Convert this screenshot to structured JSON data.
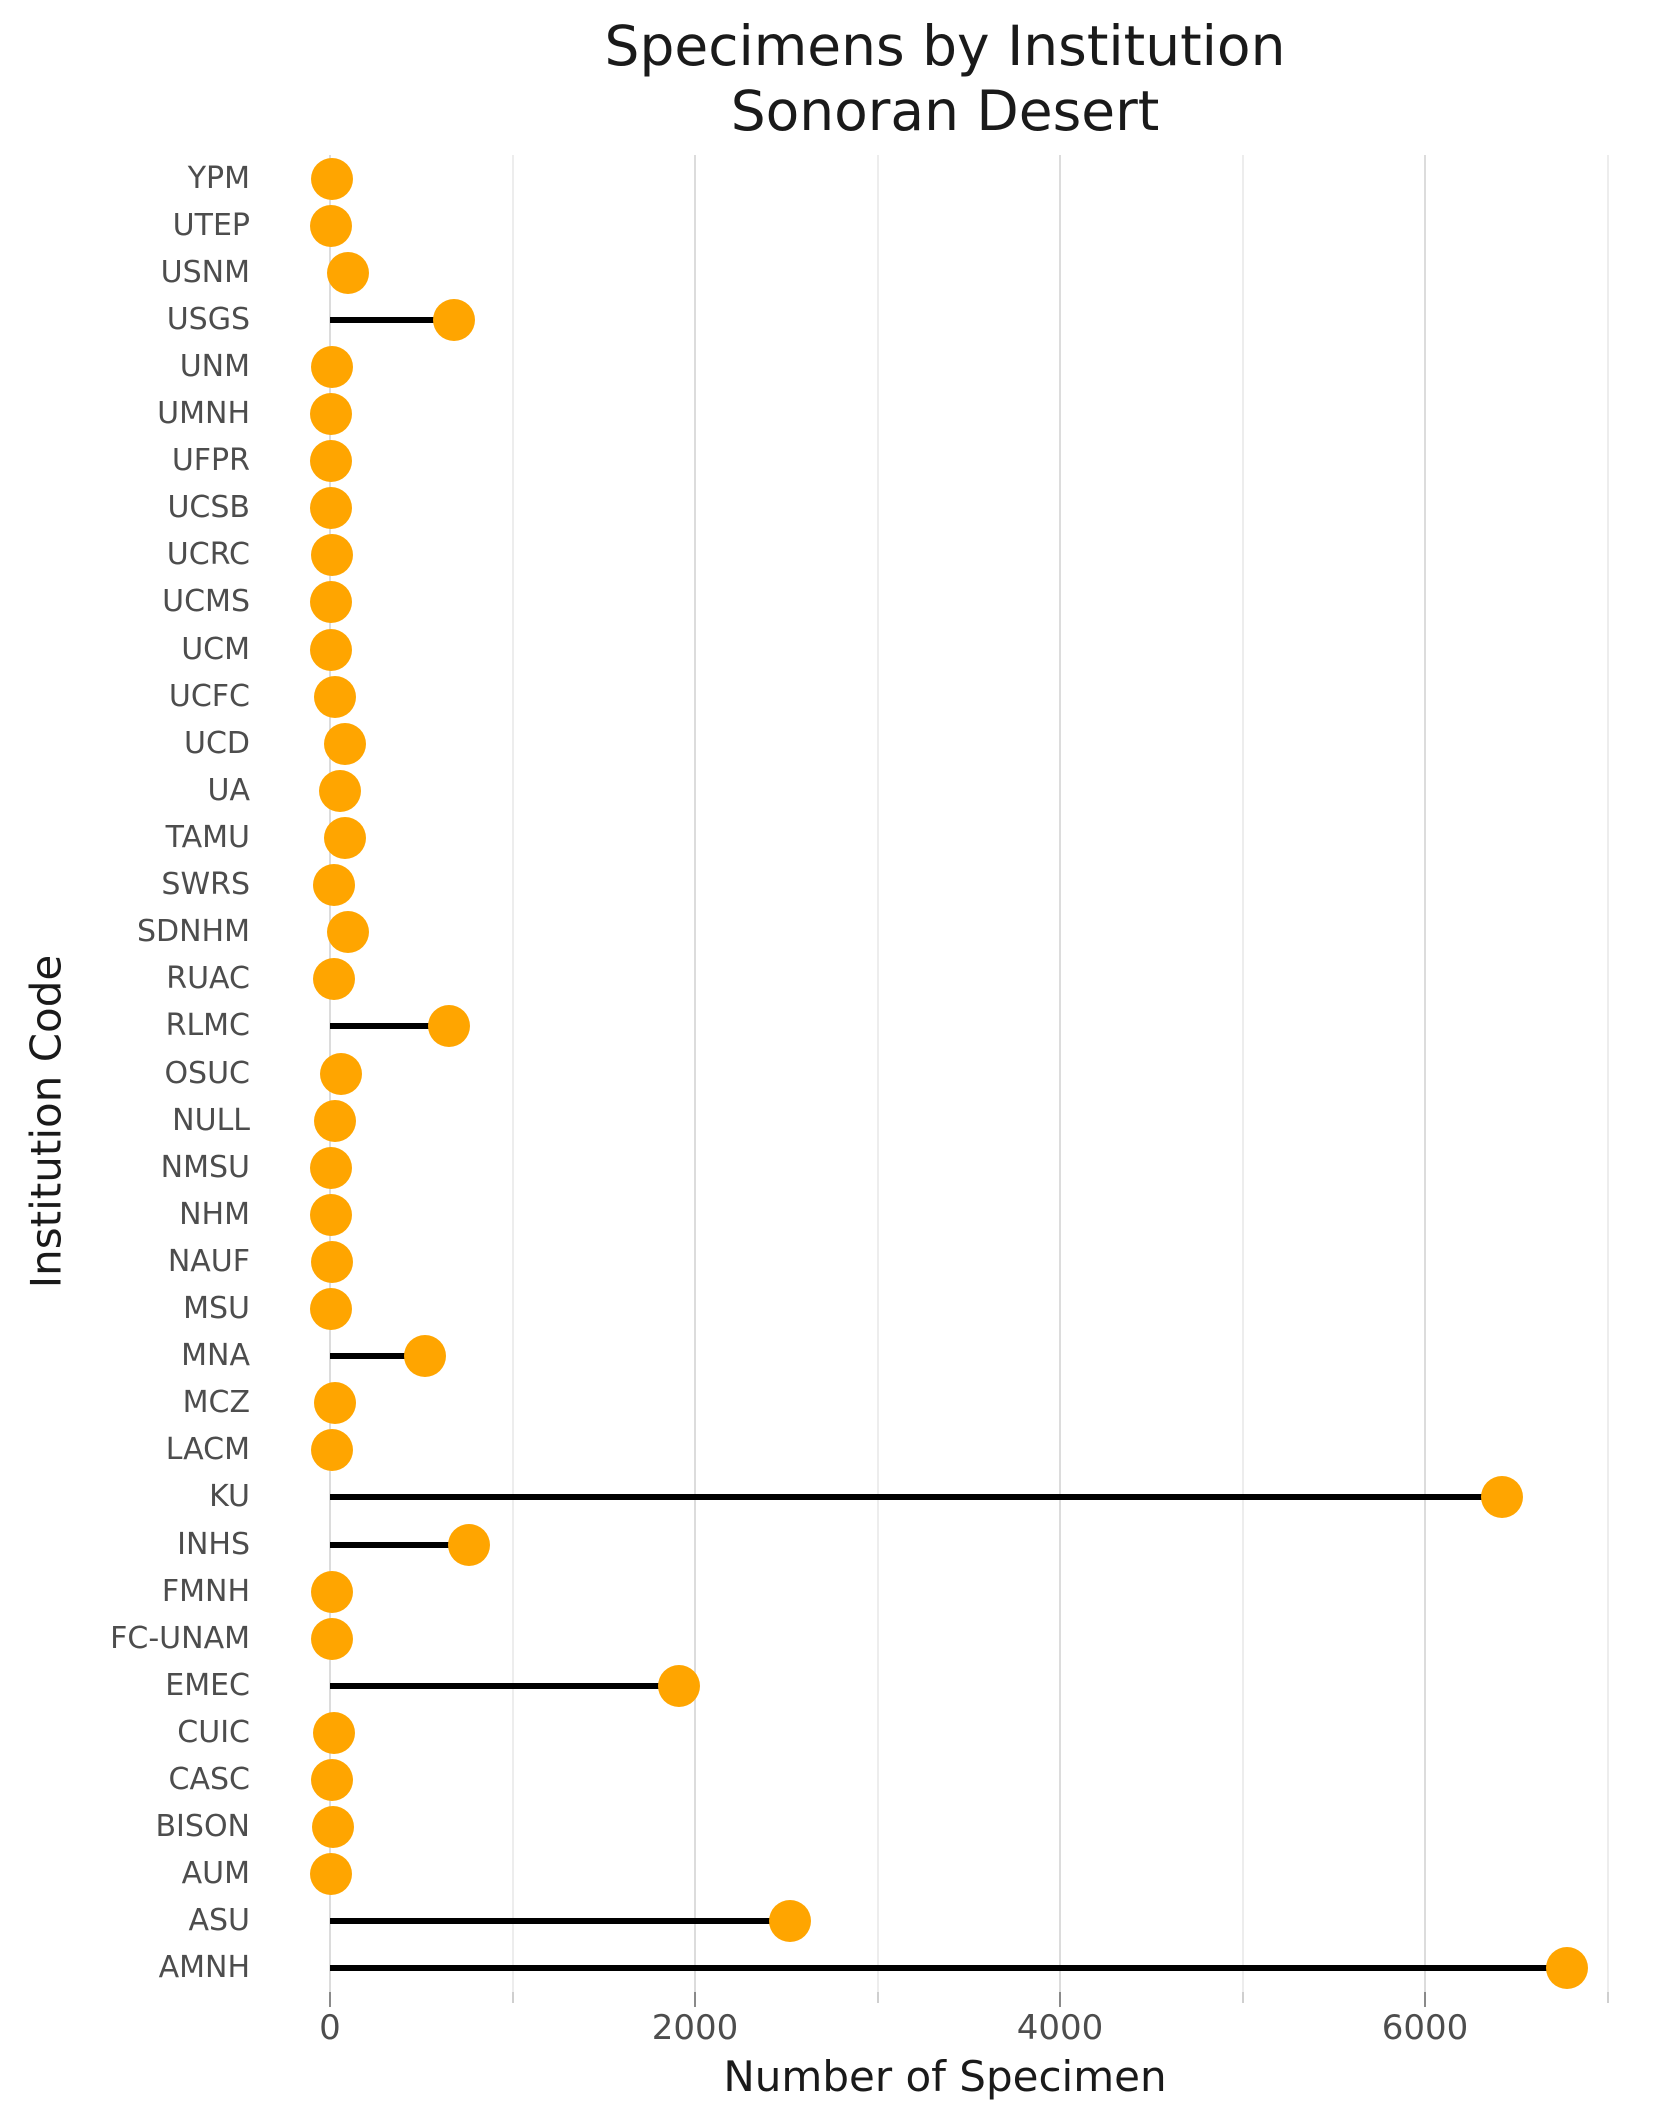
{
  "title": {
    "line1": "Specimens by Institution",
    "line2": "Sonoran Desert"
  },
  "x_axis": {
    "label": "Number of Specimen",
    "major_ticks": [
      0,
      2000,
      4000,
      6000
    ],
    "minor_ticks": [
      1000,
      3000,
      5000,
      7000
    ],
    "range": [
      -356,
      7080
    ]
  },
  "y_axis": {
    "label": "Institution Code"
  },
  "colors": {
    "dot": "#FFA500",
    "stem": "#000000",
    "grid_major": "#dcdcdc",
    "grid_minor": "#ededed",
    "tick_label": "#4d4d4d",
    "title_text": "#1a1a1a",
    "background": "#ffffff"
  },
  "chart_data": {
    "type": "bar",
    "style": "lollipop",
    "orientation": "horizontal",
    "title": "Specimens by Institution",
    "subtitle": "Sonoran Desert",
    "xlabel": "Number of Specimen",
    "ylabel": "Institution Code",
    "xlim": [
      -356,
      7080
    ],
    "grid": "vertical-only",
    "legend": "none",
    "categories": [
      "YPM",
      "UTEP",
      "USNM",
      "USGS",
      "UNM",
      "UMNH",
      "UFPR",
      "UCSB",
      "UCRC",
      "UCMS",
      "UCM",
      "UCFC",
      "UCD",
      "UA",
      "TAMU",
      "SWRS",
      "SDNHM",
      "RUAC",
      "RLMC",
      "OSUC",
      "NULL",
      "NMSU",
      "NHM",
      "NAUF",
      "MSU",
      "MNA",
      "MCZ",
      "LACM",
      "KU",
      "INHS",
      "FMNH",
      "FC-UNAM",
      "EMEC",
      "CUIC",
      "CASC",
      "BISON",
      "AUM",
      "ASU",
      "AMNH"
    ],
    "values": [
      10,
      5,
      100,
      680,
      10,
      5,
      5,
      5,
      10,
      5,
      5,
      25,
      80,
      55,
      80,
      20,
      100,
      20,
      650,
      60,
      30,
      5,
      5,
      10,
      5,
      520,
      30,
      10,
      6420,
      760,
      10,
      10,
      1910,
      20,
      10,
      15,
      5,
      2520,
      6780
    ]
  }
}
